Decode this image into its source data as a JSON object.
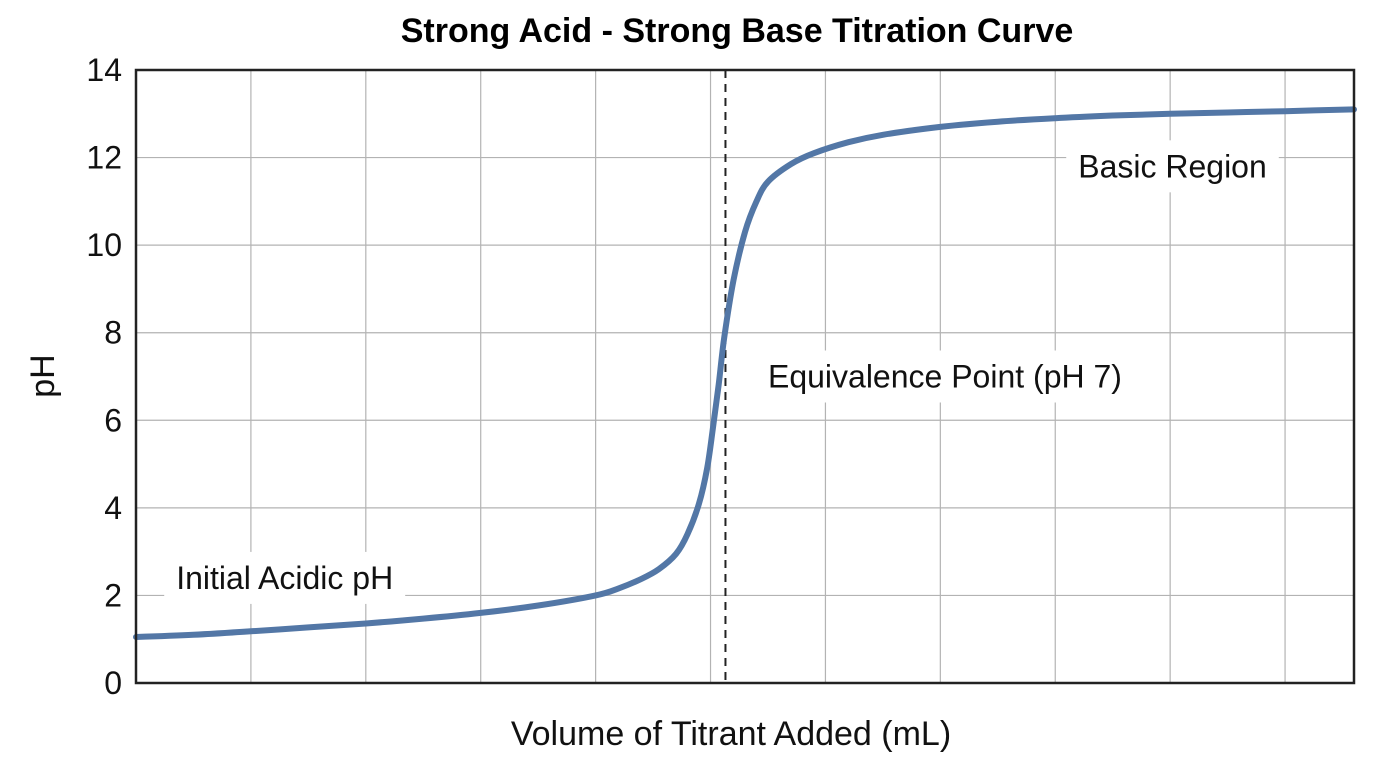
{
  "chart_data": {
    "type": "line",
    "title": "Strong Acid - Strong Base Titration Curve",
    "xlabel": "Volume of Titrant Added (mL)",
    "ylabel": "pH",
    "xlim": [
      0,
      10.6
    ],
    "ylim": [
      0,
      14
    ],
    "x_ticks_labeled": false,
    "y_ticks": [
      0,
      2,
      4,
      6,
      8,
      10,
      12,
      14
    ],
    "grid": true,
    "x_grid": [
      1,
      2,
      3,
      4,
      5,
      6,
      7,
      8,
      9,
      10
    ],
    "line_color": "#5377a6",
    "equivalence_x": 5.13,
    "series": [
      {
        "x": [
          0,
          0.5,
          1.0,
          1.5,
          2.0,
          2.5,
          3.0,
          3.5,
          4.0,
          4.2,
          4.4,
          4.55,
          4.7,
          4.8,
          4.9,
          4.97,
          5.02,
          5.07,
          5.12,
          5.2,
          5.3,
          5.4,
          5.5,
          5.7,
          5.9,
          6.2,
          6.5,
          7.0,
          7.5,
          8.0,
          8.5,
          9.0,
          9.5,
          10.0,
          10.6
        ],
        "y": [
          1.05,
          1.1,
          1.18,
          1.27,
          1.36,
          1.47,
          1.6,
          1.77,
          2.0,
          2.16,
          2.38,
          2.6,
          2.95,
          3.4,
          4.1,
          4.9,
          5.8,
          6.8,
          7.9,
          9.2,
          10.3,
          11.0,
          11.45,
          11.85,
          12.1,
          12.35,
          12.52,
          12.7,
          12.82,
          12.9,
          12.96,
          13.0,
          13.03,
          13.06,
          13.1
        ]
      }
    ],
    "annotations": {
      "initial": {
        "text": "Initial Acidic pH",
        "x": 0.35,
        "y": 2.4
      },
      "equivalence": {
        "text": "Equivalence Point (pH 7)",
        "x": 5.5,
        "y": 7.0
      },
      "basic": {
        "text": "Basic Region",
        "x": 8.2,
        "y": 11.8
      }
    }
  }
}
